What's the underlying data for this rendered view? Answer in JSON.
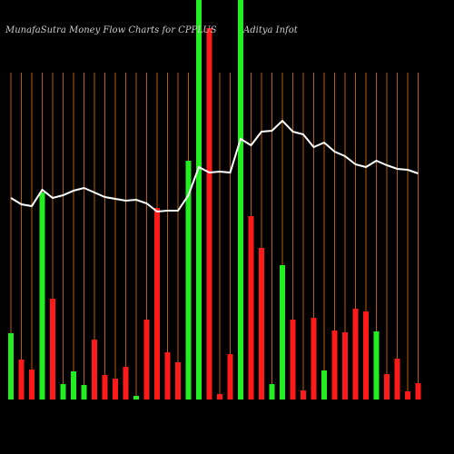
{
  "chart_data": {
    "type": "bar",
    "title": "MunafaSutra  Money Flow  Charts for CPPLUS",
    "subtitle": "Aditya  Infot",
    "grid": true,
    "ylim": [
      0,
      440
    ],
    "series": [
      {
        "name": "money flow",
        "type": "bar",
        "colors": [
          "#22ee22",
          "#ff1a1a",
          "#ff1a1a",
          "#22ee22",
          "#ff1a1a",
          "#22ee22",
          "#22ee22",
          "#22ee22",
          "#ff1a1a",
          "#ff1a1a",
          "#ff1a1a",
          "#ff1a1a",
          "#22ee22",
          "#ff1a1a",
          "#ff1a1a",
          "#ff1a1a",
          "#ff1a1a",
          "#22ee22",
          "#22ee22",
          "#ff1a1a",
          "#ff1a1a",
          "#ff1a1a",
          "#22ee22",
          "#ff1a1a",
          "#ff1a1a",
          "#22ee22",
          "#22ee22",
          "#ff1a1a",
          "#ff1a1a",
          "#ff1a1a",
          "#22ee22",
          "#ff1a1a",
          "#ff1a1a",
          "#ff1a1a",
          "#ff1a1a",
          "#22ee22",
          "#ff1a1a",
          "#ff1a1a",
          "#ff1a1a",
          "#ff1a1a"
        ],
        "values": [
          73,
          44,
          33,
          228,
          111,
          17,
          31,
          16,
          66,
          27,
          23,
          36,
          4,
          88,
          211,
          52,
          41,
          263,
          440,
          409,
          6,
          50,
          440,
          202,
          167,
          17,
          148,
          88,
          10,
          90,
          32,
          76,
          74,
          100,
          97,
          75,
          28,
          45,
          9,
          18
        ]
      },
      {
        "name": "price",
        "type": "line",
        "color": "#ffffff",
        "values": [
          222,
          215,
          213,
          231,
          222,
          225,
          230,
          233,
          228,
          223,
          221,
          219,
          220,
          216,
          207,
          208,
          208,
          225,
          256,
          250,
          251,
          250,
          287,
          280,
          295,
          296,
          307,
          295,
          292,
          278,
          283,
          273,
          268,
          259,
          256,
          263,
          258,
          254,
          253,
          249
        ]
      }
    ]
  }
}
